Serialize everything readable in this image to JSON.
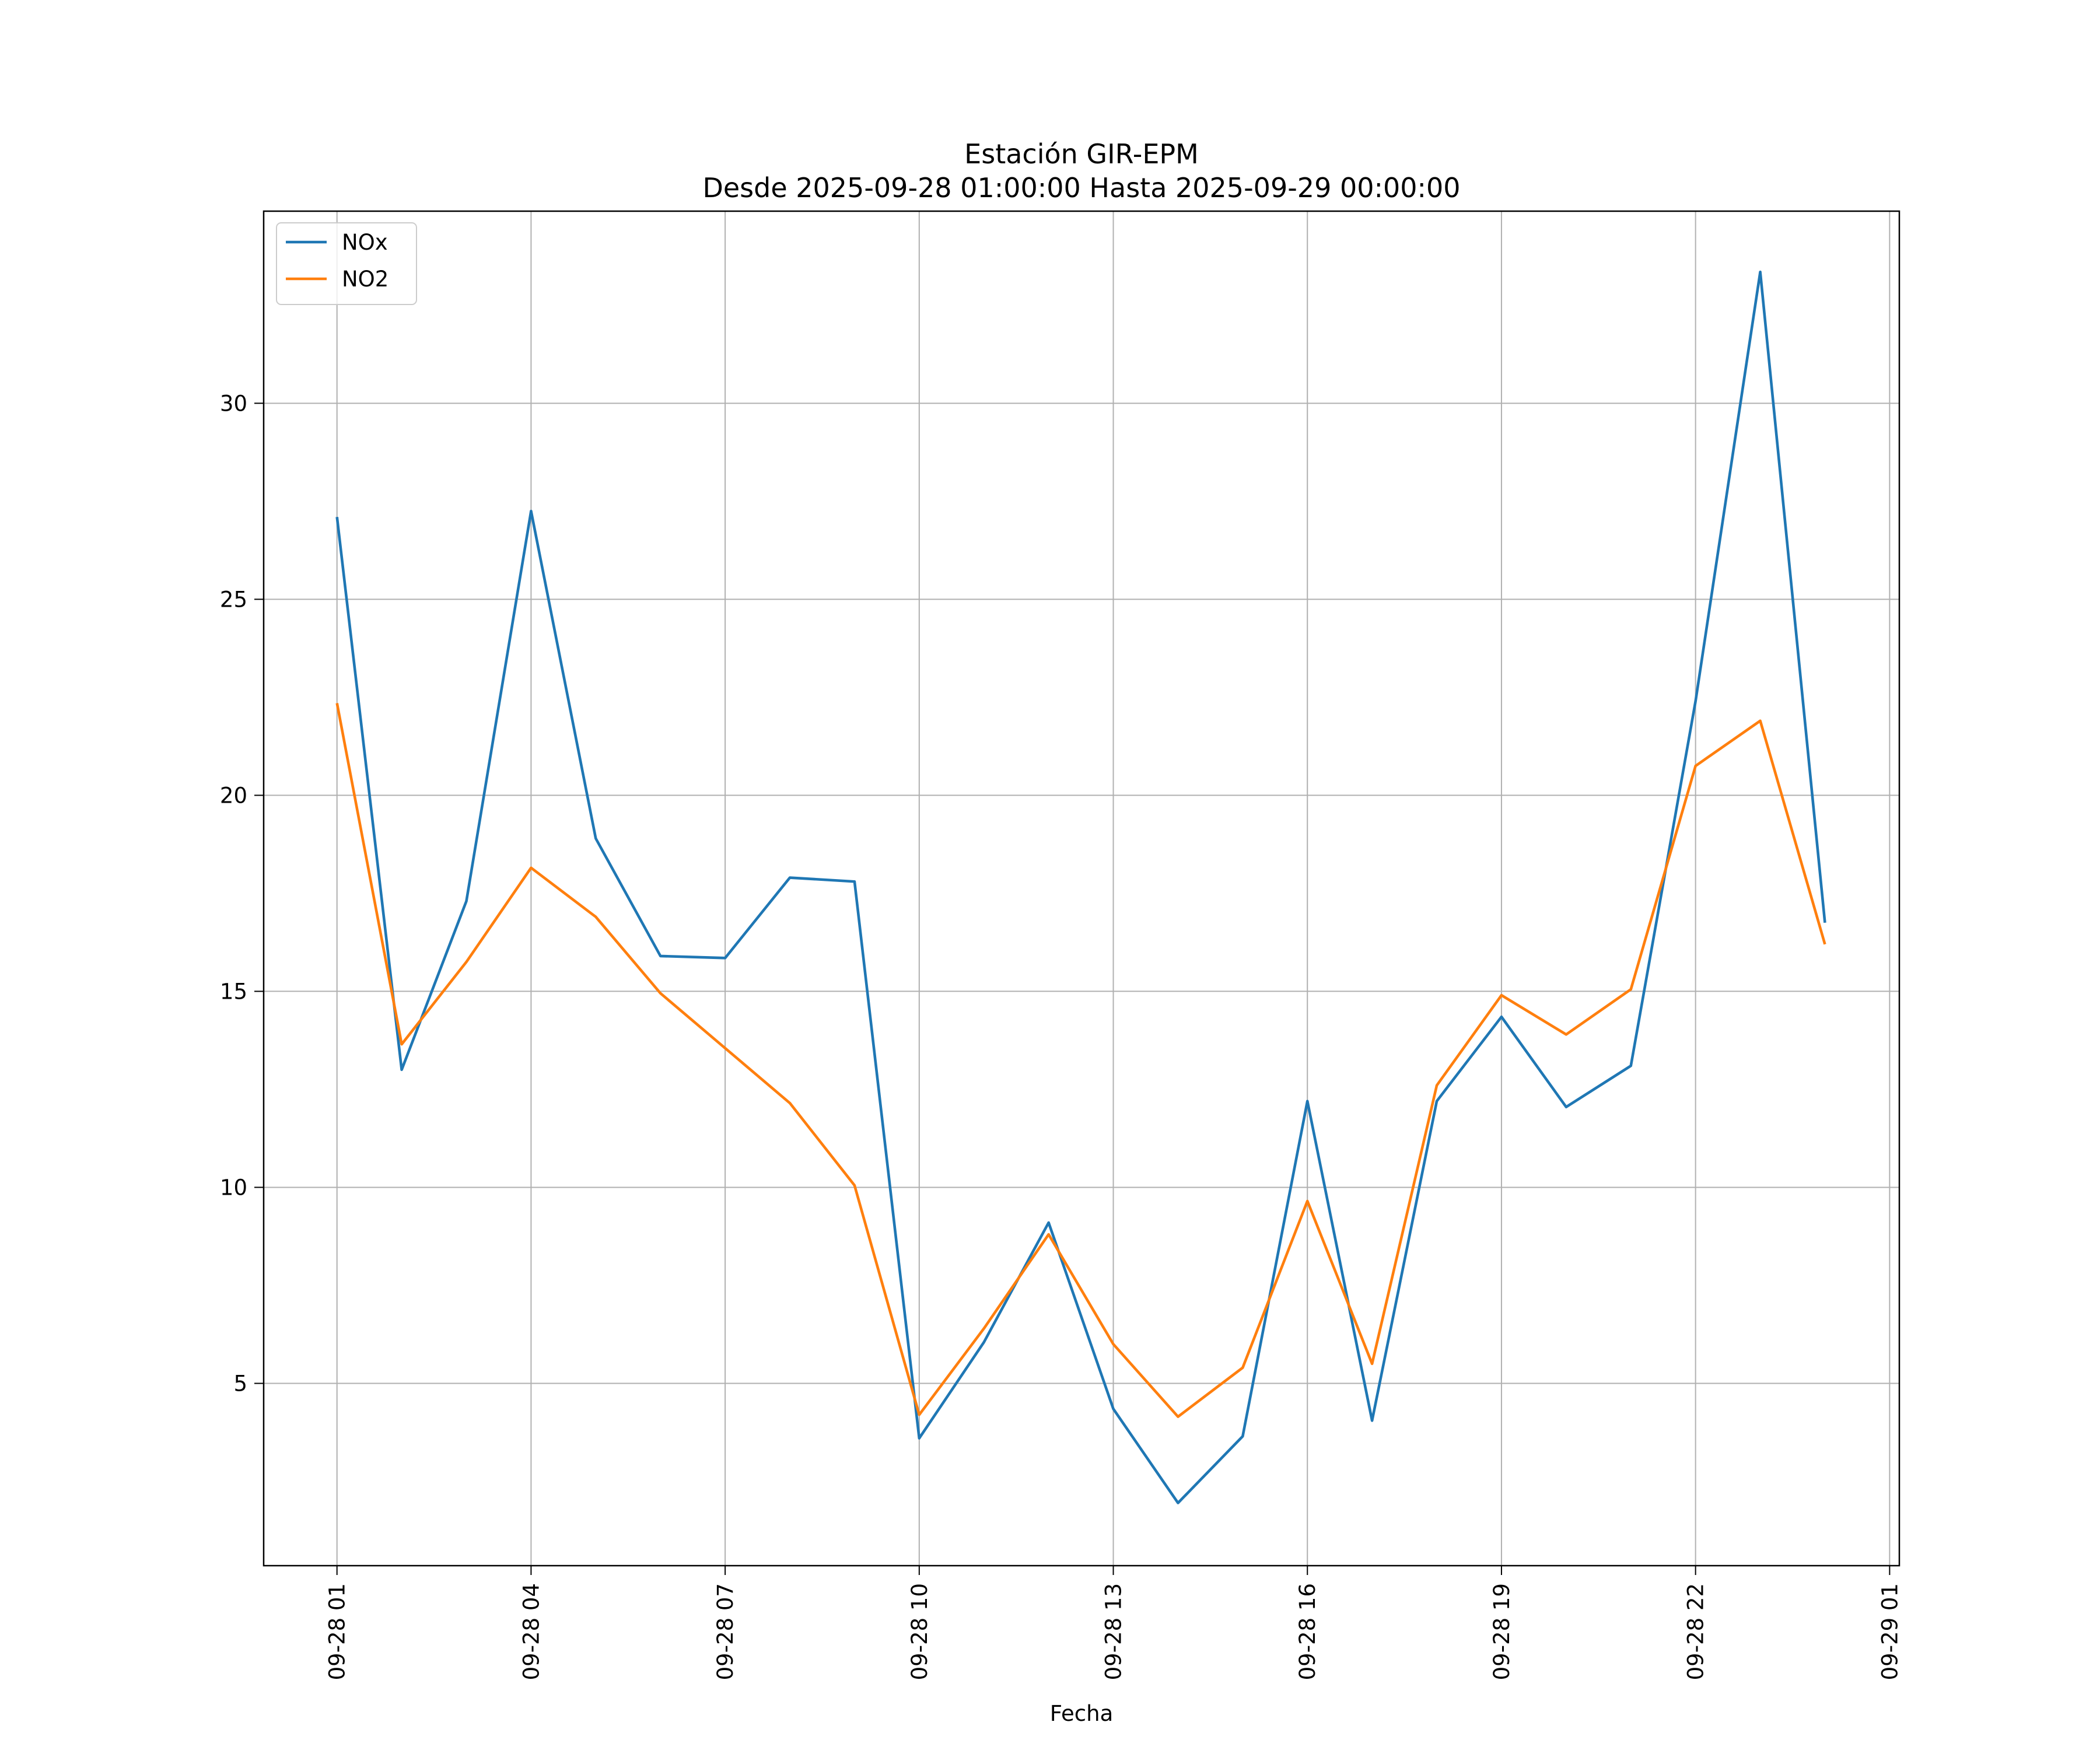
{
  "chart_data": {
    "type": "line",
    "title": "Estación GIR-EPM",
    "subtitle": "Desde 2025-09-28 01:00:00 Hasta 2025-09-29 00:00:00",
    "xlabel": "Fecha",
    "ylabel": "",
    "x": [
      "2025-09-28 01:00",
      "2025-09-28 02:00",
      "2025-09-28 03:00",
      "2025-09-28 04:00",
      "2025-09-28 05:00",
      "2025-09-28 06:00",
      "2025-09-28 07:00",
      "2025-09-28 08:00",
      "2025-09-28 09:00",
      "2025-09-28 10:00",
      "2025-09-28 11:00",
      "2025-09-28 12:00",
      "2025-09-28 13:00",
      "2025-09-28 14:00",
      "2025-09-28 15:00",
      "2025-09-28 16:00",
      "2025-09-28 17:00",
      "2025-09-28 18:00",
      "2025-09-28 19:00",
      "2025-09-28 20:00",
      "2025-09-28 21:00",
      "2025-09-28 22:00",
      "2025-09-28 23:00",
      "2025-09-29 00:00"
    ],
    "series": [
      {
        "name": "NOx",
        "color": "#1f77b4",
        "values": [
          27.1,
          13.0,
          17.3,
          27.25,
          18.9,
          15.9,
          15.85,
          17.9,
          17.8,
          3.6,
          6.05,
          9.1,
          4.35,
          1.95,
          3.65,
          12.2,
          4.05,
          12.2,
          14.35,
          12.05,
          13.1,
          22.4,
          33.35,
          16.75
        ]
      },
      {
        "name": "NO2",
        "color": "#ff7f0e",
        "values": [
          22.35,
          13.65,
          15.75,
          18.15,
          16.9,
          14.95,
          13.55,
          12.15,
          10.05,
          4.2,
          6.4,
          8.8,
          6.0,
          4.15,
          5.4,
          9.65,
          5.5,
          12.6,
          14.9,
          13.9,
          15.05,
          20.75,
          21.9,
          16.2
        ]
      }
    ],
    "xticks": [
      "09-28 01",
      "09-28 04",
      "09-28 07",
      "09-28 10",
      "09-28 13",
      "09-28 16",
      "09-28 19",
      "09-28 22",
      "09-29 01"
    ],
    "yticks": [
      5,
      10,
      15,
      20,
      25,
      30
    ],
    "xlim": [
      "2025-09-27 23:52",
      "2025-09-29 01:09"
    ],
    "ylim": [
      0.35,
      34.9
    ],
    "grid": true,
    "legend": "top-left"
  }
}
